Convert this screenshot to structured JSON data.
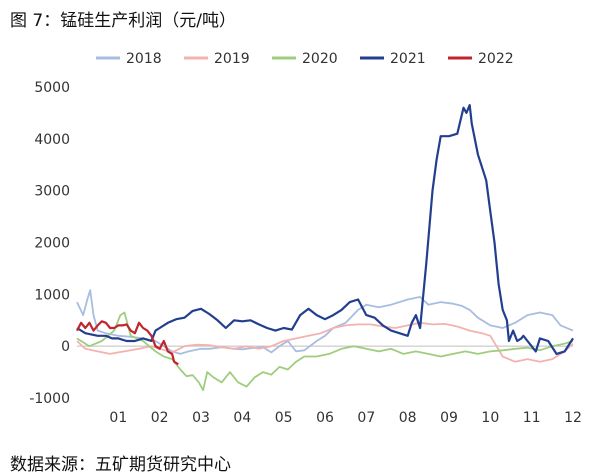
{
  "title": "图 7：锰硅生产利润（元/吨）",
  "source": "数据来源：五矿期货研究中心",
  "chart_data": {
    "type": "line",
    "title": "图 7：锰硅生产利润（元/吨）",
    "xlabel": "",
    "ylabel": "",
    "x_range": [
      0,
      12
    ],
    "ylim": [
      -1000,
      5000
    ],
    "yticks": [
      5000,
      4000,
      3000,
      2000,
      1000,
      0,
      -1000
    ],
    "xtick_labels": [
      "01",
      "02",
      "03",
      "04",
      "05",
      "06",
      "07",
      "08",
      "09",
      "10",
      "11",
      "12"
    ],
    "grid": false,
    "legend_position": "top",
    "series": [
      {
        "name": "2018",
        "color": "#a9bde0",
        "points": [
          [
            0,
            850
          ],
          [
            0.15,
            600
          ],
          [
            0.25,
            900
          ],
          [
            0.32,
            1080
          ],
          [
            0.4,
            600
          ],
          [
            0.5,
            300
          ],
          [
            0.7,
            250
          ],
          [
            1.0,
            200
          ],
          [
            1.3,
            180
          ],
          [
            1.6,
            150
          ],
          [
            1.9,
            100
          ],
          [
            2.1,
            0
          ],
          [
            2.3,
            -100
          ],
          [
            2.5,
            -150
          ],
          [
            2.7,
            -100
          ],
          [
            3.0,
            -50
          ],
          [
            3.2,
            -50
          ],
          [
            3.5,
            -20
          ],
          [
            3.8,
            -50
          ],
          [
            4.0,
            -60
          ],
          [
            4.2,
            -40
          ],
          [
            4.5,
            -20
          ],
          [
            4.7,
            -120
          ],
          [
            4.9,
            0
          ],
          [
            5.1,
            100
          ],
          [
            5.3,
            -100
          ],
          [
            5.5,
            -80
          ],
          [
            5.8,
            100
          ],
          [
            6.0,
            200
          ],
          [
            6.2,
            350
          ],
          [
            6.5,
            450
          ],
          [
            6.8,
            700
          ],
          [
            7.0,
            800
          ],
          [
            7.3,
            750
          ],
          [
            7.6,
            800
          ],
          [
            7.8,
            850
          ],
          [
            8.0,
            900
          ],
          [
            8.3,
            950
          ],
          [
            8.5,
            800
          ],
          [
            8.8,
            850
          ],
          [
            9.1,
            820
          ],
          [
            9.3,
            780
          ],
          [
            9.5,
            700
          ],
          [
            9.7,
            550
          ],
          [
            10.0,
            400
          ],
          [
            10.3,
            350
          ],
          [
            10.6,
            450
          ],
          [
            10.9,
            600
          ],
          [
            11.2,
            650
          ],
          [
            11.5,
            600
          ],
          [
            11.7,
            400
          ],
          [
            12.0,
            300
          ]
        ]
      },
      {
        "name": "2019",
        "color": "#f2b3b0",
        "points": [
          [
            0,
            100
          ],
          [
            0.2,
            -50
          ],
          [
            0.5,
            -100
          ],
          [
            0.8,
            -150
          ],
          [
            1.0,
            -120
          ],
          [
            1.3,
            -80
          ],
          [
            1.5,
            -50
          ],
          [
            1.8,
            0
          ],
          [
            2.0,
            -50
          ],
          [
            2.3,
            -120
          ],
          [
            2.6,
            0
          ],
          [
            2.9,
            30
          ],
          [
            3.2,
            20
          ],
          [
            3.5,
            -20
          ],
          [
            3.8,
            -50
          ],
          [
            4.1,
            0
          ],
          [
            4.4,
            -50
          ],
          [
            4.7,
            0
          ],
          [
            5.0,
            100
          ],
          [
            5.3,
            150
          ],
          [
            5.6,
            200
          ],
          [
            5.9,
            250
          ],
          [
            6.2,
            350
          ],
          [
            6.5,
            400
          ],
          [
            6.8,
            420
          ],
          [
            7.1,
            420
          ],
          [
            7.4,
            380
          ],
          [
            7.7,
            350
          ],
          [
            8.0,
            400
          ],
          [
            8.3,
            450
          ],
          [
            8.6,
            420
          ],
          [
            8.9,
            430
          ],
          [
            9.2,
            380
          ],
          [
            9.5,
            300
          ],
          [
            9.8,
            250
          ],
          [
            10.0,
            200
          ],
          [
            10.3,
            -200
          ],
          [
            10.6,
            -300
          ],
          [
            10.9,
            -250
          ],
          [
            11.2,
            -300
          ],
          [
            11.5,
            -250
          ],
          [
            11.8,
            -100
          ],
          [
            12.0,
            50
          ]
        ]
      },
      {
        "name": "2020",
        "color": "#9fcd7e",
        "points": [
          [
            0,
            150
          ],
          [
            0.3,
            0
          ],
          [
            0.6,
            100
          ],
          [
            0.9,
            300
          ],
          [
            1.05,
            600
          ],
          [
            1.15,
            650
          ],
          [
            1.3,
            200
          ],
          [
            1.6,
            100
          ],
          [
            1.9,
            -100
          ],
          [
            2.1,
            -200
          ],
          [
            2.3,
            -250
          ],
          [
            2.5,
            -450
          ],
          [
            2.65,
            -580
          ],
          [
            2.8,
            -560
          ],
          [
            2.95,
            -700
          ],
          [
            3.05,
            -850
          ],
          [
            3.15,
            -500
          ],
          [
            3.3,
            -600
          ],
          [
            3.5,
            -700
          ],
          [
            3.7,
            -500
          ],
          [
            3.9,
            -700
          ],
          [
            4.1,
            -780
          ],
          [
            4.3,
            -600
          ],
          [
            4.5,
            -500
          ],
          [
            4.7,
            -550
          ],
          [
            4.9,
            -400
          ],
          [
            5.1,
            -450
          ],
          [
            5.3,
            -300
          ],
          [
            5.5,
            -200
          ],
          [
            5.8,
            -200
          ],
          [
            6.1,
            -150
          ],
          [
            6.4,
            -50
          ],
          [
            6.7,
            0
          ],
          [
            7.0,
            -50
          ],
          [
            7.3,
            -100
          ],
          [
            7.6,
            -50
          ],
          [
            7.9,
            -150
          ],
          [
            8.2,
            -100
          ],
          [
            8.5,
            -150
          ],
          [
            8.8,
            -200
          ],
          [
            9.1,
            -150
          ],
          [
            9.4,
            -100
          ],
          [
            9.7,
            -150
          ],
          [
            10.0,
            -100
          ],
          [
            10.3,
            -80
          ],
          [
            10.6,
            -50
          ],
          [
            10.9,
            -30
          ],
          [
            11.2,
            -80
          ],
          [
            11.5,
            0
          ],
          [
            11.8,
            50
          ],
          [
            12.0,
            100
          ]
        ]
      },
      {
        "name": "2021",
        "color": "#223f8f",
        "points": [
          [
            0,
            350
          ],
          [
            0.2,
            250
          ],
          [
            0.5,
            200
          ],
          [
            0.7,
            200
          ],
          [
            0.85,
            150
          ],
          [
            1.0,
            150
          ],
          [
            1.2,
            100
          ],
          [
            1.4,
            100
          ],
          [
            1.6,
            150
          ],
          [
            1.8,
            100
          ],
          [
            1.9,
            300
          ],
          [
            2.0,
            350
          ],
          [
            2.2,
            450
          ],
          [
            2.4,
            520
          ],
          [
            2.6,
            550
          ],
          [
            2.8,
            680
          ],
          [
            3.0,
            720
          ],
          [
            3.2,
            620
          ],
          [
            3.4,
            500
          ],
          [
            3.6,
            350
          ],
          [
            3.8,
            500
          ],
          [
            4.0,
            480
          ],
          [
            4.2,
            500
          ],
          [
            4.4,
            420
          ],
          [
            4.6,
            350
          ],
          [
            4.8,
            300
          ],
          [
            5.0,
            350
          ],
          [
            5.2,
            320
          ],
          [
            5.4,
            600
          ],
          [
            5.6,
            720
          ],
          [
            5.8,
            600
          ],
          [
            6.0,
            520
          ],
          [
            6.2,
            600
          ],
          [
            6.4,
            700
          ],
          [
            6.6,
            850
          ],
          [
            6.8,
            900
          ],
          [
            7.0,
            600
          ],
          [
            7.2,
            550
          ],
          [
            7.4,
            400
          ],
          [
            7.6,
            300
          ],
          [
            7.8,
            250
          ],
          [
            8.0,
            200
          ],
          [
            8.1,
            450
          ],
          [
            8.2,
            600
          ],
          [
            8.3,
            350
          ],
          [
            8.45,
            1600
          ],
          [
            8.6,
            3000
          ],
          [
            8.7,
            3600
          ],
          [
            8.8,
            4050
          ],
          [
            9.0,
            4050
          ],
          [
            9.2,
            4100
          ],
          [
            9.35,
            4600
          ],
          [
            9.42,
            4500
          ],
          [
            9.5,
            4650
          ],
          [
            9.55,
            4300
          ],
          [
            9.7,
            3700
          ],
          [
            9.9,
            3200
          ],
          [
            10.0,
            2600
          ],
          [
            10.1,
            2000
          ],
          [
            10.2,
            1200
          ],
          [
            10.3,
            700
          ],
          [
            10.4,
            500
          ],
          [
            10.45,
            100
          ],
          [
            10.55,
            300
          ],
          [
            10.65,
            100
          ],
          [
            10.75,
            150
          ],
          [
            10.8,
            200
          ],
          [
            10.9,
            100
          ],
          [
            11.1,
            -100
          ],
          [
            11.2,
            150
          ],
          [
            11.4,
            100
          ],
          [
            11.6,
            -150
          ],
          [
            11.8,
            -100
          ],
          [
            12.0,
            150
          ]
        ]
      },
      {
        "name": "2022",
        "color": "#c0242c",
        "points": [
          [
            0,
            300
          ],
          [
            0.1,
            450
          ],
          [
            0.2,
            350
          ],
          [
            0.3,
            450
          ],
          [
            0.4,
            300
          ],
          [
            0.5,
            400
          ],
          [
            0.6,
            480
          ],
          [
            0.7,
            450
          ],
          [
            0.8,
            350
          ],
          [
            0.9,
            350
          ],
          [
            1.0,
            400
          ],
          [
            1.1,
            400
          ],
          [
            1.2,
            420
          ],
          [
            1.3,
            300
          ],
          [
            1.4,
            250
          ],
          [
            1.5,
            450
          ],
          [
            1.6,
            350
          ],
          [
            1.7,
            300
          ],
          [
            1.8,
            200
          ],
          [
            1.9,
            0
          ],
          [
            2.0,
            -50
          ],
          [
            2.1,
            100
          ],
          [
            2.2,
            -100
          ],
          [
            2.3,
            -150
          ],
          [
            2.35,
            -300
          ],
          [
            2.45,
            -350
          ]
        ]
      }
    ]
  }
}
